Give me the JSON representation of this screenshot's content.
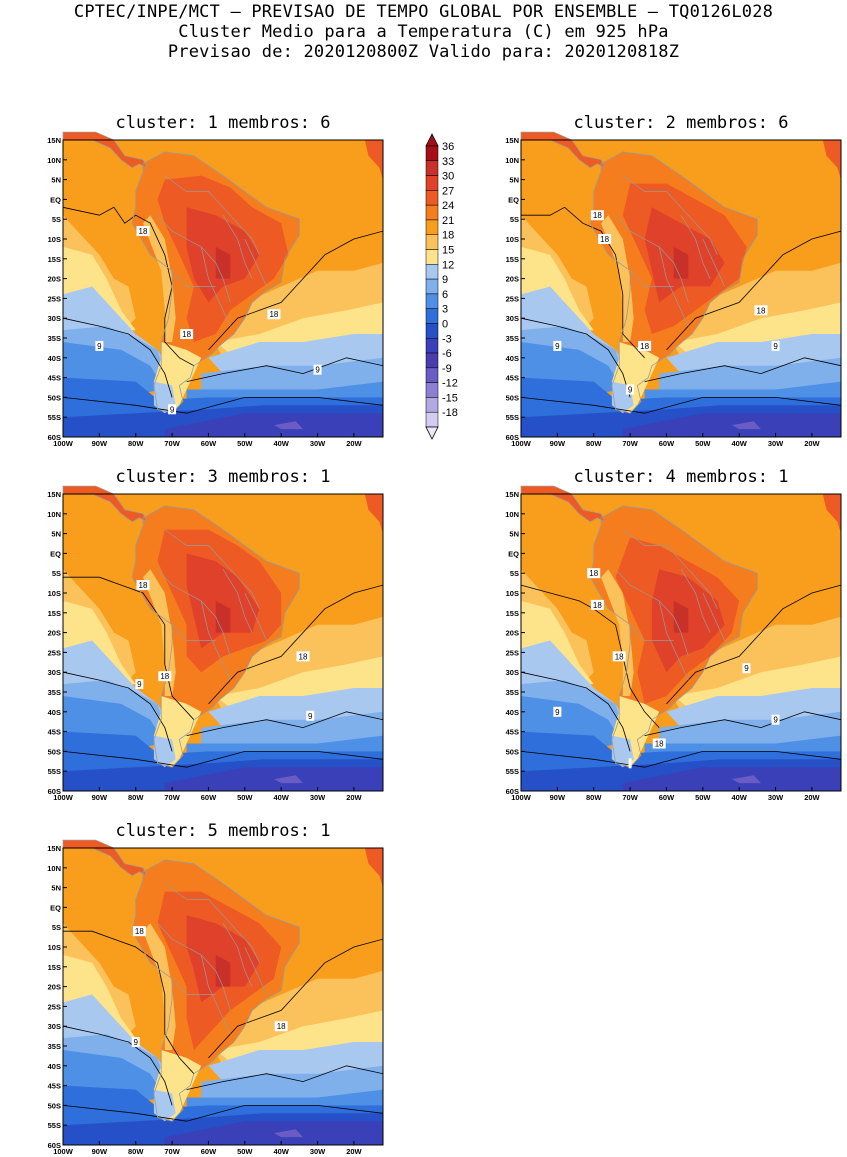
{
  "header": {
    "line1": "CPTEC/INPE/MCT – PREVISAO DE TEMPO GLOBAL POR ENSEMBLE – TQ0126L028",
    "line2": "Cluster Medio para a Temperatura (C) em 925 hPa",
    "line3": "Previsao de: 2020120800Z   Valido para: 2020120818Z"
  },
  "panels": [
    {
      "title": "cluster: 1   membros: 6",
      "labels": [
        "18",
        "18",
        "18",
        "9",
        "9",
        "9"
      ]
    },
    {
      "title": "cluster: 2   membros: 6",
      "labels": [
        "18",
        "18",
        "18",
        "18",
        "9",
        "9",
        "9"
      ]
    },
    {
      "title": "cluster: 3   membros: 1",
      "labels": [
        "18",
        "18",
        "18",
        "9",
        "9"
      ]
    },
    {
      "title": "cluster: 4   membros: 1",
      "labels": [
        "18",
        "18",
        "18",
        "18",
        "9",
        "9",
        "9"
      ]
    },
    {
      "title": "cluster: 5   membros: 1",
      "labels": [
        "18",
        "18",
        "9"
      ]
    }
  ],
  "axes": {
    "y_ticks": [
      "15N",
      "10N",
      "5N",
      "EQ",
      "5S",
      "10S",
      "15S",
      "20S",
      "25S",
      "30S",
      "35S",
      "40S",
      "45S",
      "50S",
      "55S",
      "60S"
    ],
    "x_ticks": [
      "100W",
      "90W",
      "80W",
      "70W",
      "60W",
      "50W",
      "40W",
      "30W",
      "20W"
    ]
  },
  "colorbar": {
    "labels": [
      "36",
      "33",
      "30",
      "27",
      "24",
      "21",
      "18",
      "15",
      "12",
      "9",
      "6",
      "3",
      "0",
      "-3",
      "-6",
      "-9",
      "-12",
      "-15",
      "-18"
    ],
    "colors": [
      "#a50f15",
      "#c8302a",
      "#e0412a",
      "#ee5a24",
      "#f57d1e",
      "#f99d1c",
      "#fbc15a",
      "#fde38a",
      "#a9c8f0",
      "#7fb0ec",
      "#4e90e6",
      "#2f6fdc",
      "#2550c8",
      "#3a40b8",
      "#4d3cb0",
      "#6a5cc4",
      "#8c80d4",
      "#b2a8e2",
      "#d4ccf0"
    ]
  }
}
